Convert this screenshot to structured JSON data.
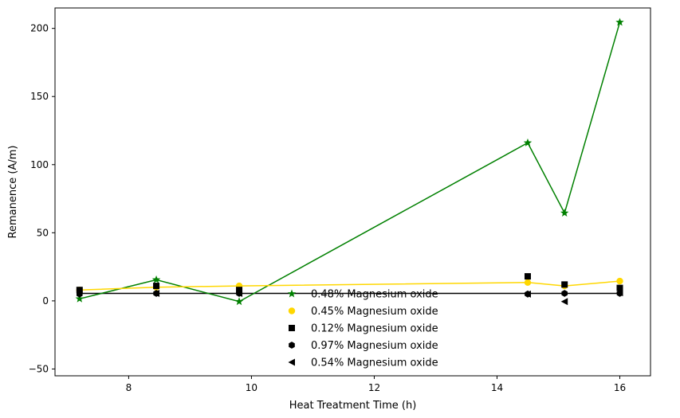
{
  "chart_data": {
    "type": "line",
    "title": "",
    "xlabel": "Heat Treatment Time (h)",
    "ylabel": "Remanence (A/m)",
    "xlim": [
      6.8,
      16.5
    ],
    "ylim": [
      -55,
      215
    ],
    "x_ticks": [
      8,
      10,
      12,
      14,
      16
    ],
    "y_ticks": [
      -50,
      0,
      50,
      100,
      150,
      200
    ],
    "grid": false,
    "legend_position": "lower-center",
    "series": [
      {
        "name": "0.48% Magnesium oxide",
        "color": "#008000",
        "marker": "star",
        "line": true,
        "x": [
          7.2,
          8.45,
          9.8,
          14.5,
          15.1,
          16.0
        ],
        "y": [
          1.5,
          15.5,
          -0.5,
          116,
          64.5,
          204.5
        ]
      },
      {
        "name": "0.45% Magnesium oxide",
        "color": "#ffd700",
        "marker": "circle",
        "line": true,
        "x": [
          7.2,
          8.45,
          9.8,
          14.5,
          15.1,
          16.0
        ],
        "y": [
          8,
          10,
          11,
          13.5,
          11,
          14.5
        ]
      },
      {
        "name": "0.12% Magnesium oxide",
        "color": "#000000",
        "marker": "square",
        "line": false,
        "x": [
          7.2,
          8.45,
          9.8,
          14.5,
          15.1,
          16.0
        ],
        "y": [
          8,
          11,
          8,
          18,
          12,
          9.5
        ]
      },
      {
        "name": "0.97% Magnesium oxide",
        "color": "#000000",
        "marker": "hexagon",
        "line": false,
        "x": [
          7.2,
          8.45,
          9.8,
          14.5,
          15.1,
          16.0
        ],
        "y": [
          5,
          5.5,
          5.5,
          5,
          5.5,
          5.5
        ]
      },
      {
        "name": "0.54% Magnesium oxide",
        "color": "#000000",
        "marker": "triangle-left",
        "line": false,
        "x": [
          8.45,
          9.8,
          14.5,
          15.1,
          16.0
        ],
        "y": [
          5.5,
          5.5,
          5,
          -0.5,
          6
        ]
      }
    ],
    "reference_lines": [
      {
        "color": "#000000",
        "x": [
          7.2,
          16.0
        ],
        "y": [
          5.5,
          5.5
        ]
      }
    ]
  }
}
